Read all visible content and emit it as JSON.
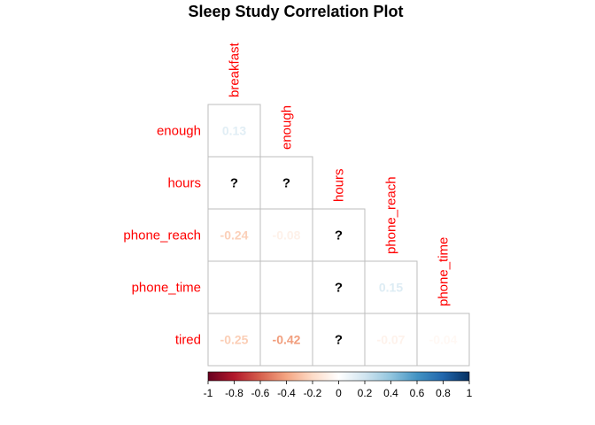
{
  "chart_data": {
    "type": "heatmap",
    "title": "Sleep Study Correlation Plot",
    "rows": [
      "enough",
      "hours",
      "phone_reach",
      "phone_time",
      "tired"
    ],
    "cols": [
      "breakfast",
      "enough",
      "hours",
      "phone_reach",
      "phone_time"
    ],
    "cells": [
      {
        "row": "enough",
        "col": "breakfast",
        "value": 0.13,
        "label": "0.13"
      },
      {
        "row": "hours",
        "col": "breakfast",
        "value": null,
        "label": "?"
      },
      {
        "row": "hours",
        "col": "enough",
        "value": null,
        "label": "?"
      },
      {
        "row": "phone_reach",
        "col": "breakfast",
        "value": -0.24,
        "label": "-0.24"
      },
      {
        "row": "phone_reach",
        "col": "enough",
        "value": -0.08,
        "label": "-0.08"
      },
      {
        "row": "phone_reach",
        "col": "hours",
        "value": null,
        "label": "?"
      },
      {
        "row": "phone_time",
        "col": "hours",
        "value": null,
        "label": "?"
      },
      {
        "row": "phone_time",
        "col": "phone_reach",
        "value": 0.15,
        "label": "0.15"
      },
      {
        "row": "tired",
        "col": "breakfast",
        "value": -0.25,
        "label": "-0.25"
      },
      {
        "row": "tired",
        "col": "enough",
        "value": -0.42,
        "label": "-0.42"
      },
      {
        "row": "tired",
        "col": "hours",
        "value": null,
        "label": "?"
      },
      {
        "row": "tired",
        "col": "phone_reach",
        "value": -0.07,
        "label": "-0.07"
      },
      {
        "row": "tired",
        "col": "phone_time",
        "value": -0.04,
        "label": "-0.04"
      }
    ],
    "colorbar": {
      "range": [
        -1,
        1
      ],
      "ticks": [
        "-1",
        "-0.8",
        "-0.6",
        "-0.4",
        "-0.2",
        "0",
        "0.2",
        "0.4",
        "0.6",
        "0.8",
        "1"
      ],
      "palette": [
        "#67001F",
        "#B2182B",
        "#D6604D",
        "#F4A582",
        "#FDDBC7",
        "#FFFFFF",
        "#D1E5F0",
        "#92C5DE",
        "#4393C3",
        "#2166AC",
        "#053061"
      ]
    },
    "label_color": "#FF0000",
    "grid_color": "#BEBEBE"
  }
}
